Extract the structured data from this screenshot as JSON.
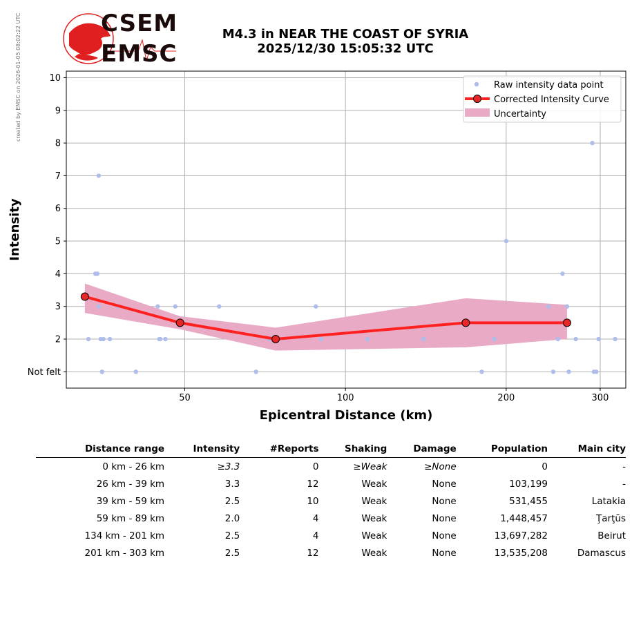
{
  "header": {
    "title_line1": "M4.3 in NEAR THE COAST OF SYRIA",
    "title_line2": "2025/12/30 15:05:32 UTC",
    "side_note": "created by EMSC on 2026-01-05 08:02:22 UTC",
    "logo_top": "CSEM",
    "logo_bottom": "EMSC"
  },
  "colors": {
    "raw_points": "#aebde9",
    "curve": "#ff2020",
    "marker_fill": "#e82828",
    "uncertainty": "#e8aac4",
    "grid": "#b0b0b0",
    "logo_red": "#e02020"
  },
  "chart_data": {
    "type": "scatter",
    "title": "M4.3 in NEAR THE COAST OF SYRIA 2025/12/30 15:05:32 UTC",
    "xlabel": "Epicentral Distance (km)",
    "ylabel": "Intensity",
    "x_scale": "log",
    "xlim": [
      30,
      335
    ],
    "ylim": [
      0.5,
      10.2
    ],
    "x_ticks": [
      50,
      100,
      200,
      300
    ],
    "x_tick_labels": [
      "50",
      "100",
      "200",
      "300"
    ],
    "y_ticks": [
      1,
      2,
      3,
      4,
      5,
      6,
      7,
      8,
      9,
      10
    ],
    "y_tick_labels": [
      "Not felt",
      "2",
      "3",
      "4",
      "5",
      "6",
      "7",
      "8",
      "9",
      "10"
    ],
    "grid": true,
    "legend_position": "top-right",
    "legend": [
      "Raw intensity data point",
      "Corrected Intensity Curve",
      "Uncertainty"
    ],
    "series": [
      {
        "name": "Raw intensity data point",
        "kind": "scatter",
        "points": [
          [
            33.0,
            2
          ],
          [
            34.0,
            4
          ],
          [
            34.3,
            4
          ],
          [
            34.5,
            7
          ],
          [
            34.5,
            3
          ],
          [
            34.8,
            2
          ],
          [
            35.0,
            1
          ],
          [
            35.2,
            2
          ],
          [
            36.2,
            2
          ],
          [
            37.5,
            3
          ],
          [
            40.5,
            1
          ],
          [
            44.5,
            3
          ],
          [
            44.8,
            2
          ],
          [
            45.0,
            2
          ],
          [
            46.0,
            2
          ],
          [
            48.0,
            3
          ],
          [
            58.0,
            3
          ],
          [
            68.0,
            1
          ],
          [
            72.0,
            2
          ],
          [
            88.0,
            3
          ],
          [
            90.0,
            2
          ],
          [
            110.0,
            2
          ],
          [
            140.0,
            2
          ],
          [
            180.0,
            1
          ],
          [
            190.0,
            2
          ],
          [
            200.0,
            5
          ],
          [
            240.0,
            3
          ],
          [
            245.0,
            1
          ],
          [
            250.0,
            2
          ],
          [
            255.0,
            4
          ],
          [
            260.0,
            3
          ],
          [
            262.0,
            1
          ],
          [
            270.0,
            2
          ],
          [
            290.0,
            8
          ],
          [
            292.0,
            1
          ],
          [
            295.0,
            1
          ],
          [
            298.0,
            2
          ],
          [
            320.0,
            2
          ]
        ]
      },
      {
        "name": "Corrected Intensity Curve",
        "kind": "line",
        "x": [
          32.5,
          49,
          74,
          168,
          260
        ],
        "y": [
          3.3,
          2.5,
          2.0,
          2.5,
          2.5
        ]
      },
      {
        "name": "Uncertainty",
        "kind": "band",
        "x": [
          32.5,
          49,
          74,
          168,
          260
        ],
        "lower": [
          2.8,
          2.3,
          1.65,
          1.75,
          2.0
        ],
        "upper": [
          3.7,
          2.7,
          2.35,
          3.25,
          3.05
        ]
      }
    ]
  },
  "table": {
    "columns": [
      "Distance range",
      "Intensity",
      "#Reports",
      "Shaking",
      "Damage",
      "Population",
      "Main city"
    ],
    "rows": [
      [
        "0 km -   26 km",
        "≥3.3",
        "0",
        "≥Weak",
        "≥None",
        "0",
        "-"
      ],
      [
        "26 km -   39 km",
        "3.3",
        "12",
        "Weak",
        "None",
        "103,199",
        "-"
      ],
      [
        "39 km -   59 km",
        "2.5",
        "10",
        "Weak",
        "None",
        "531,455",
        "Latakia"
      ],
      [
        "59 km -   89 km",
        "2.0",
        "4",
        "Weak",
        "None",
        "1,448,457",
        "Ţarţūs"
      ],
      [
        "134 km -  201 km",
        "2.5",
        "4",
        "Weak",
        "None",
        "13,697,282",
        "Beirut"
      ],
      [
        "201 km -  303 km",
        "2.5",
        "12",
        "Weak",
        "None",
        "13,535,208",
        "Damascus"
      ]
    ]
  }
}
